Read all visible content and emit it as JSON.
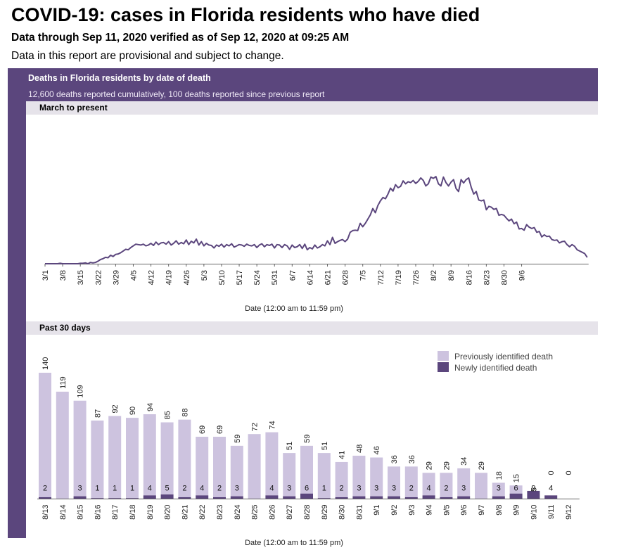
{
  "header": {
    "title": "COVID-19: cases in Florida residents who have died",
    "subtitle": "Data through Sep 11, 2020 verified as of Sep 12, 2020 at 09:25 AM",
    "note": "Data in this report are provisional and subject to change."
  },
  "panel": {
    "title": "Deaths in Florida residents by date of death",
    "subtitle": "12,600 deaths reported cumulatively, 100 deaths reported since previous report"
  },
  "colors": {
    "frame": "#5b467d",
    "line": "#5b467d",
    "previous": "#cdc3df",
    "newly": "#5b467d",
    "section_bar": "#e6e3ea"
  },
  "chart_data": [
    {
      "type": "line",
      "section_label": "March to present",
      "xlabel": "Date (12:00 am to 11:59 pm)",
      "ylabel": "",
      "x_start": "3/1",
      "x_ticks": [
        "3/1",
        "3/8",
        "3/15",
        "3/22",
        "3/29",
        "4/5",
        "4/12",
        "4/19",
        "4/26",
        "5/3",
        "5/10",
        "5/17",
        "5/24",
        "5/31",
        "6/7",
        "6/14",
        "6/21",
        "6/28",
        "7/5",
        "7/12",
        "7/19",
        "7/26",
        "8/2",
        "8/9",
        "8/16",
        "8/23",
        "8/30",
        "9/6"
      ],
      "ylim": [
        0,
        240
      ],
      "grid": false,
      "series": [
        {
          "values": [
            0,
            0,
            0,
            0,
            0,
            0,
            1,
            0,
            0,
            0,
            0,
            0,
            0,
            0,
            1,
            1,
            2,
            0,
            3,
            2,
            3,
            6,
            10,
            12,
            15,
            14,
            20,
            17,
            22,
            23,
            26,
            30,
            34,
            33,
            38,
            42,
            46,
            45,
            44,
            46,
            42,
            44,
            48,
            43,
            51,
            45,
            49,
            50,
            46,
            52,
            44,
            48,
            54,
            46,
            50,
            47,
            56,
            45,
            53,
            49,
            58,
            44,
            52,
            42,
            48,
            44,
            43,
            37,
            44,
            41,
            46,
            39,
            45,
            42,
            47,
            39,
            42,
            45,
            44,
            41,
            46,
            43,
            42,
            45,
            38,
            44,
            47,
            40,
            45,
            43,
            46,
            37,
            45,
            44,
            38,
            45,
            42,
            34,
            44,
            38,
            40,
            45,
            36,
            46,
            33,
            38,
            35,
            44,
            37,
            40,
            45,
            42,
            54,
            45,
            62,
            48,
            52,
            55,
            57,
            52,
            58,
            74,
            78,
            79,
            78,
            95,
            87,
            95,
            105,
            115,
            130,
            120,
            137,
            148,
            156,
            153,
            164,
            178,
            171,
            186,
            179,
            182,
            195,
            188,
            193,
            191,
            196,
            189,
            194,
            202,
            196,
            183,
            188,
            204,
            201,
            205,
            188,
            183,
            204,
            191,
            183,
            192,
            198,
            177,
            170,
            198,
            190,
            198,
            202,
            180,
            164,
            170,
            150,
            148,
            150,
            127,
            135,
            133,
            128,
            130,
            114,
            116,
            114,
            107,
            101,
            105,
            94,
            98,
            82,
            83,
            79,
            92,
            86,
            83,
            85,
            74,
            76,
            63,
            68,
            64,
            65,
            57,
            55,
            56,
            49,
            52,
            53,
            45,
            40,
            45,
            41,
            33,
            30,
            27,
            24,
            15
          ]
        }
      ]
    },
    {
      "type": "bar",
      "section_label": "Past 30 days",
      "xlabel": "Date (12:00 am to 11:59 pm)",
      "ylabel": "",
      "ylim": [
        0,
        140
      ],
      "grid": false,
      "legend_position": "top-right",
      "categories": [
        "8/13",
        "8/14",
        "8/15",
        "8/16",
        "8/17",
        "8/18",
        "8/19",
        "8/20",
        "8/21",
        "8/22",
        "8/23",
        "8/24",
        "8/25",
        "8/26",
        "8/27",
        "8/28",
        "8/29",
        "8/30",
        "8/31",
        "9/1",
        "9/2",
        "9/3",
        "9/4",
        "9/5",
        "9/6",
        "9/7",
        "9/8",
        "9/9",
        "9/10",
        "9/11",
        "9/12"
      ],
      "totals": [
        140,
        119,
        109,
        87,
        92,
        90,
        94,
        85,
        88,
        69,
        69,
        59,
        72,
        74,
        51,
        59,
        51,
        41,
        48,
        46,
        36,
        36,
        29,
        29,
        34,
        29,
        18,
        15,
        5,
        0,
        0
      ],
      "series": [
        {
          "name": "Previously identified death",
          "values": [
            138,
            119,
            106,
            86,
            91,
            89,
            90,
            80,
            86,
            65,
            67,
            56,
            72,
            70,
            48,
            53,
            50,
            39,
            45,
            43,
            33,
            34,
            25,
            27,
            31,
            29,
            15,
            9,
            -4,
            -4,
            0
          ]
        },
        {
          "name": "Newly identified death",
          "values": [
            2,
            0,
            3,
            1,
            1,
            1,
            4,
            5,
            2,
            4,
            2,
            3,
            0,
            4,
            3,
            6,
            1,
            2,
            3,
            3,
            3,
            2,
            4,
            2,
            3,
            0,
            3,
            6,
            9,
            4,
            0
          ],
          "labels": [
            "2",
            "",
            "3",
            "1",
            "1",
            "1",
            "4",
            "5",
            "2",
            "4",
            "2",
            "3",
            "",
            "4",
            "3",
            "6",
            "1",
            "2",
            "3",
            "3",
            "3",
            "2",
            "4",
            "2",
            "3",
            "",
            "3",
            "6",
            "9",
            "4",
            ""
          ]
        }
      ]
    }
  ]
}
